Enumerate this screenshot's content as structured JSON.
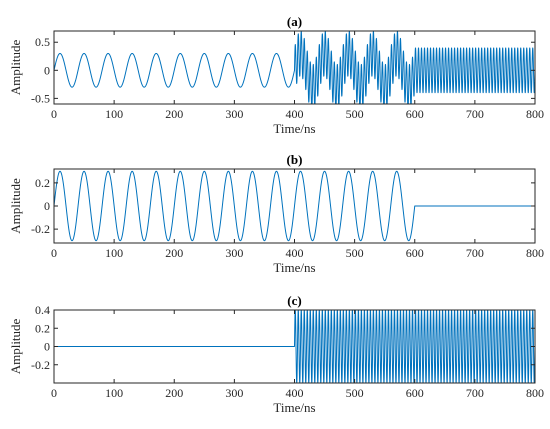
{
  "chart_data": [
    {
      "type": "line",
      "title": "(a)",
      "xlabel": "Time/ns",
      "ylabel": "Amplitude",
      "xlim": [
        0,
        800
      ],
      "ylim": [
        -0.6,
        0.7
      ],
      "xticks": [
        "0",
        "100",
        "200",
        "300",
        "400",
        "500",
        "600",
        "700",
        "800"
      ],
      "yticks": [
        "0.5",
        "0",
        "-0.5"
      ],
      "ytick_values": [
        0.5,
        0,
        -0.5
      ],
      "series": [
        {
          "color": "#0072BD",
          "segments": [
            {
              "t_start": 0,
              "t_end": 400,
              "components": [
                {
                  "amplitude": 0.3,
                  "period_ns": 40
                }
              ]
            },
            {
              "t_start": 400,
              "t_end": 600,
              "components": [
                {
                  "amplitude": 0.3,
                  "period_ns": 40
                },
                {
                  "amplitude": 0.4,
                  "period_ns": 5
                }
              ]
            },
            {
              "t_start": 600,
              "t_end": 800,
              "components": [
                {
                  "amplitude": 0.4,
                  "period_ns": 5
                }
              ]
            }
          ]
        }
      ]
    },
    {
      "type": "line",
      "title": "(b)",
      "xlabel": "Time/ns",
      "ylabel": "Amplitude",
      "xlim": [
        0,
        800
      ],
      "ylim": [
        -0.32,
        0.32
      ],
      "xticks": [
        "0",
        "100",
        "200",
        "300",
        "400",
        "500",
        "600",
        "700",
        "800"
      ],
      "yticks": [
        "0.2",
        "0",
        "-0.2"
      ],
      "ytick_values": [
        0.2,
        0,
        -0.2
      ],
      "series": [
        {
          "color": "#0072BD",
          "segments": [
            {
              "t_start": 0,
              "t_end": 600,
              "components": [
                {
                  "amplitude": 0.3,
                  "period_ns": 40
                }
              ]
            },
            {
              "t_start": 600,
              "t_end": 800,
              "components": []
            }
          ]
        }
      ]
    },
    {
      "type": "line",
      "title": "(c)",
      "xlabel": "Time/ns",
      "ylabel": "Amplitude",
      "xlim": [
        0,
        800
      ],
      "ylim": [
        -0.4,
        0.4
      ],
      "xticks": [
        "0",
        "100",
        "200",
        "300",
        "400",
        "500",
        "600",
        "700",
        "800"
      ],
      "yticks": [
        "0.4",
        "0.2",
        "0",
        "-0.2"
      ],
      "ytick_values": [
        0.4,
        0.2,
        0,
        -0.2
      ],
      "series": [
        {
          "color": "#0072BD",
          "segments": [
            {
              "t_start": 0,
              "t_end": 400,
              "components": []
            },
            {
              "t_start": 400,
              "t_end": 800,
              "components": [
                {
                  "amplitude": 0.4,
                  "period_ns": 5
                }
              ]
            }
          ]
        }
      ]
    }
  ]
}
